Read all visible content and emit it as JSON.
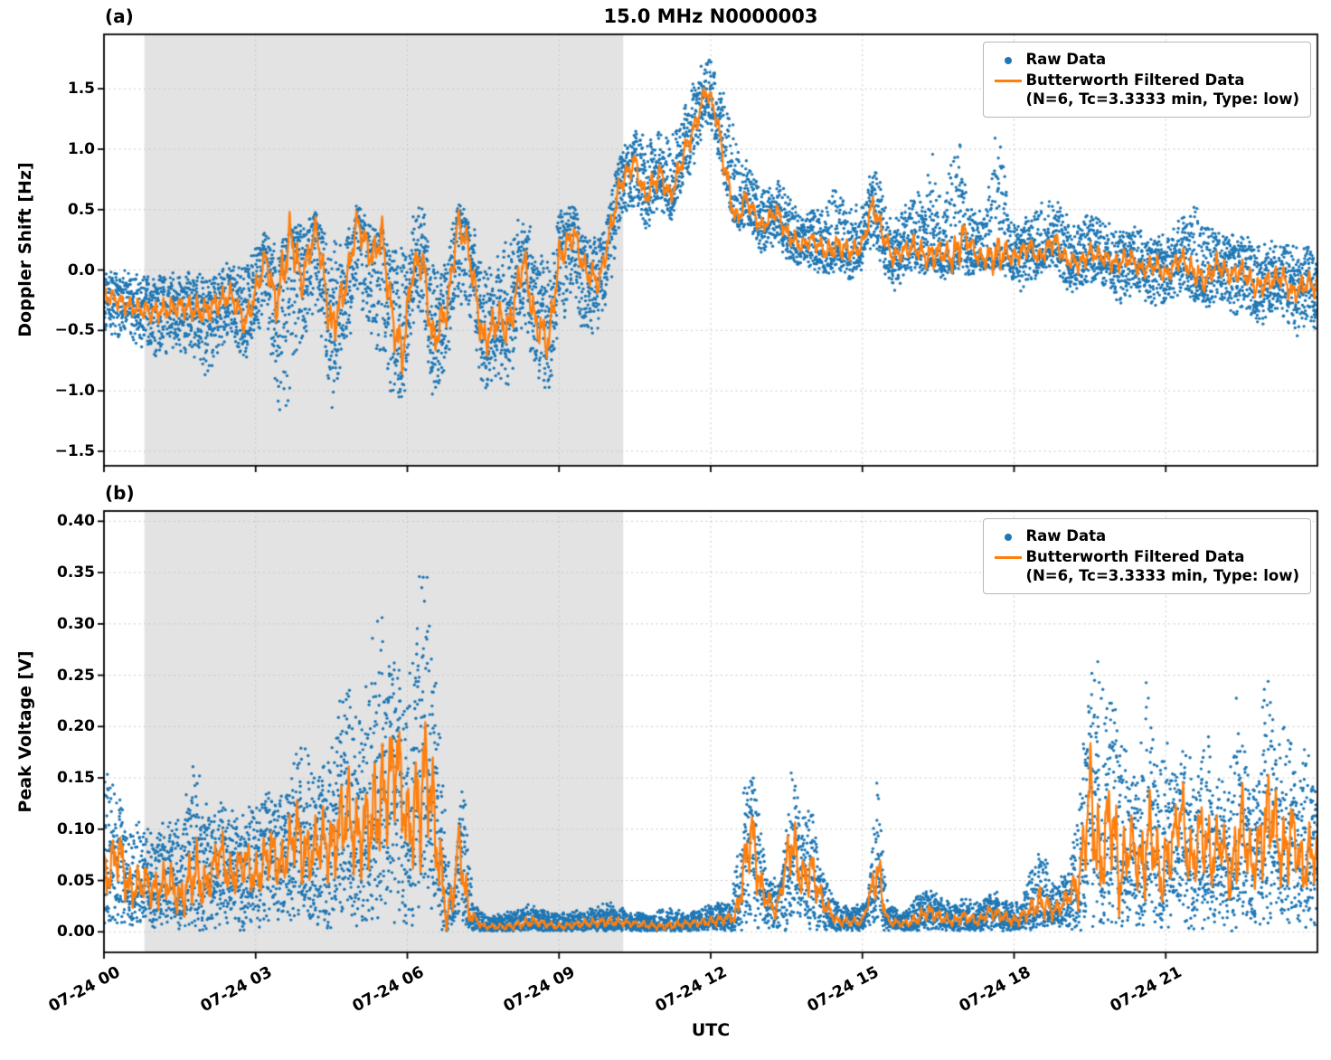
{
  "figure": {
    "title": "15.0 MHz N0000003",
    "xlabel": "UTC",
    "panel_a_label": "(a)",
    "panel_b_label": "(b)",
    "seed": 42,
    "colors": {
      "raw": "#1f77b4",
      "filtered": "#ff7f0e",
      "shade": "#e3e3e3",
      "grid": "#c8c8c8",
      "axis": "#000000"
    },
    "legend": {
      "raw": "Raw Data",
      "filtered": "Butterworth Filtered Data",
      "filtered_params": "(N=6, Tc=3.3333 min, Type: low)"
    },
    "shade_region_hours": [
      0.8,
      10.27
    ]
  },
  "chart_data": [
    {
      "type": "scatter",
      "panel": "a",
      "title": "15.0 MHz N0000003",
      "ylabel": "Doppler Shift [Hz]",
      "xlabel": "UTC",
      "ylim": [
        -1.62,
        1.95
      ],
      "yticks": [
        -1.5,
        -1.0,
        -0.5,
        0.0,
        0.5,
        1.0,
        1.5
      ],
      "ytick_labels": [
        "−1.5",
        "−1.0",
        "−0.5",
        "0.0",
        "0.5",
        "1.0",
        "1.5"
      ],
      "xlim_hours": [
        0,
        24
      ],
      "xticks_hours": [
        0,
        3,
        6,
        9,
        12,
        15,
        18,
        21
      ],
      "xtick_labels": [
        "07-24 00",
        "07-24 03",
        "07-24 06",
        "07-24 09",
        "07-24 12",
        "07-24 15",
        "07-24 18",
        "07-24 21"
      ],
      "series": [
        {
          "name": "Raw Data",
          "type": "scatter",
          "color": "#1f77b4"
        },
        {
          "name": "Butterworth Filtered Data (N=6, Tc=3.3333 min, Type: low)",
          "type": "line",
          "color": "#ff7f0e"
        }
      ],
      "filtered": {
        "x": [
          0,
          0.5,
          1,
          1.5,
          2,
          2.5,
          2.8,
          3.2,
          3.4,
          3.7,
          3.9,
          4.2,
          4.5,
          4.8,
          5,
          5.3,
          5.5,
          5.7,
          5.9,
          6.1,
          6.3,
          6.5,
          6.8,
          7,
          7.2,
          7.5,
          7.8,
          8,
          8.3,
          8.5,
          8.8,
          9,
          9.3,
          9.5,
          9.8,
          10,
          10.2,
          10.5,
          10.7,
          11,
          11.2,
          11.5,
          11.7,
          11.9,
          12.1,
          12.3,
          12.5,
          12.7,
          13,
          13.3,
          13.5,
          13.8,
          14,
          14.3,
          14.5,
          14.8,
          15,
          15.2,
          15.4,
          15.6,
          15.8,
          16,
          16.3,
          16.5,
          16.8,
          17,
          17.3,
          17.5,
          17.8,
          18,
          18.3,
          18.5,
          18.8,
          19,
          19.3,
          19.5,
          19.8,
          20,
          20.3,
          20.5,
          20.8,
          21,
          21.3,
          21.5,
          21.8,
          22,
          22.3,
          22.5,
          22.8,
          23,
          23.3,
          23.5,
          23.8,
          24
        ],
        "y": [
          -0.2,
          -0.3,
          -0.35,
          -0.3,
          -0.35,
          -0.2,
          -0.45,
          0.1,
          -0.3,
          0.3,
          -0.1,
          0.35,
          -0.5,
          -0.1,
          0.4,
          0.1,
          0.3,
          -0.4,
          -0.7,
          0,
          0.1,
          -0.6,
          -0.3,
          0.4,
          0.2,
          -0.6,
          -0.4,
          -0.5,
          0.1,
          -0.4,
          -0.6,
          0.1,
          0.3,
          0,
          -0.1,
          0.3,
          0.7,
          0.9,
          0.6,
          0.8,
          0.6,
          1,
          1.2,
          1.5,
          1.3,
          0.8,
          0.4,
          0.6,
          0.35,
          0.5,
          0.3,
          0.2,
          0.25,
          0.15,
          0.2,
          0.15,
          0.2,
          0.55,
          0.3,
          0.1,
          0.15,
          0.2,
          0.1,
          0.15,
          0.1,
          0.3,
          0.1,
          0.1,
          0.15,
          0.1,
          0.2,
          0.1,
          0.25,
          0.1,
          0.05,
          0.15,
          0.1,
          0.05,
          0.1,
          0,
          0.05,
          -0.05,
          0.1,
          0,
          -0.1,
          0.05,
          -0.05,
          0,
          -0.15,
          -0.1,
          -0.05,
          -0.2,
          -0.1,
          -0.15
        ]
      },
      "raw_envelope": {
        "x": [
          0,
          0.5,
          1,
          1.5,
          2,
          2.5,
          2.8,
          3.2,
          3.4,
          3.6,
          3.9,
          4.2,
          4.5,
          4.8,
          5,
          5.3,
          5.6,
          5.9,
          6.1,
          6.3,
          6.5,
          6.8,
          7,
          7.3,
          7.5,
          7.8,
          8,
          8.3,
          8.5,
          8.8,
          9,
          9.3,
          9.5,
          9.8,
          10,
          10.2,
          10.5,
          10.7,
          11,
          11.2,
          11.5,
          11.7,
          11.9,
          12.05,
          12.2,
          12.4,
          12.6,
          12.8,
          13,
          13.3,
          13.6,
          13.9,
          14.2,
          14.5,
          14.8,
          15,
          15.2,
          15.4,
          15.6,
          15.8,
          16,
          16.2,
          16.4,
          16.6,
          16.9,
          17.1,
          17.4,
          17.7,
          17.9,
          18.1,
          18.4,
          18.6,
          18.9,
          19.1,
          19.4,
          19.6,
          19.9,
          20.1,
          20.4,
          20.6,
          20.9,
          21.1,
          21.4,
          21.6,
          21.9,
          22.1,
          22.4,
          22.6,
          22.9,
          23.1,
          23.4,
          23.6,
          23.9,
          24
        ],
        "lo": [
          -0.55,
          -0.6,
          -0.75,
          -0.7,
          -0.9,
          -0.6,
          -0.8,
          -0.4,
          -1.1,
          -1.4,
          -0.7,
          -0.3,
          -1.2,
          -0.7,
          -0.3,
          -0.6,
          -1.0,
          -1.2,
          -0.5,
          -0.5,
          -1.15,
          -0.8,
          -0.3,
          -0.6,
          -1.1,
          -0.9,
          -1.0,
          -0.5,
          -0.9,
          -1.15,
          -0.5,
          -0.3,
          -0.6,
          -0.5,
          -0.2,
          0.3,
          0.5,
          0.3,
          0.5,
          0.35,
          0.7,
          0.9,
          1.2,
          1.1,
          0.8,
          0.4,
          0.3,
          0.3,
          0.1,
          0.2,
          0,
          0,
          -0.1,
          0,
          -0.1,
          0,
          0.2,
          0,
          -0.2,
          -0.1,
          0,
          -0.1,
          0,
          -0.1,
          0,
          -0.1,
          0,
          0,
          -0.1,
          -0.2,
          -0.1,
          0,
          -0.1,
          -0.2,
          -0.15,
          -0.1,
          -0.2,
          -0.3,
          -0.2,
          -0.3,
          -0.35,
          -0.3,
          -0.2,
          -0.3,
          -0.35,
          -0.3,
          -0.4,
          -0.35,
          -0.5,
          -0.4,
          -0.45,
          -0.55,
          -0.5,
          -0.5
        ],
        "hi": [
          0.05,
          0,
          -0.05,
          0,
          0,
          0.1,
          0.05,
          0.4,
          0.2,
          0.3,
          0.45,
          0.5,
          0.3,
          0.3,
          0.55,
          0.4,
          0.3,
          0.2,
          0.5,
          0.6,
          0.2,
          0.2,
          0.6,
          0.4,
          0.1,
          0.2,
          0.3,
          0.5,
          0.3,
          0.1,
          0.5,
          0.55,
          0.3,
          0.3,
          0.6,
          1.0,
          1.2,
          1.1,
          1.25,
          1.1,
          1.4,
          1.6,
          1.8,
          1.75,
          1.6,
          1.3,
          1.0,
          0.9,
          0.7,
          0.8,
          0.6,
          0.5,
          0.5,
          0.8,
          0.5,
          0.6,
          0.9,
          0.7,
          0.4,
          0.5,
          0.7,
          0.6,
          1.0,
          0.5,
          1.35,
          0.5,
          0.6,
          1.35,
          0.5,
          0.4,
          0.5,
          0.6,
          0.6,
          0.4,
          0.45,
          0.5,
          0.4,
          0.35,
          0.4,
          0.3,
          0.3,
          0.35,
          0.5,
          0.55,
          0.4,
          0.35,
          0.3,
          0.3,
          0.25,
          0.3,
          0.25,
          0.2,
          0.25,
          0.2
        ]
      }
    },
    {
      "type": "scatter",
      "panel": "b",
      "ylabel": "Peak Voltage [V]",
      "xlabel": "UTC",
      "ylim": [
        -0.02,
        0.41
      ],
      "yticks": [
        0.0,
        0.05,
        0.1,
        0.15,
        0.2,
        0.25,
        0.3,
        0.35,
        0.4
      ],
      "ytick_labels": [
        "0.00",
        "0.05",
        "0.10",
        "0.15",
        "0.20",
        "0.25",
        "0.30",
        "0.35",
        "0.40"
      ],
      "xlim_hours": [
        0,
        24
      ],
      "xticks_hours": [
        0,
        3,
        6,
        9,
        12,
        15,
        18,
        21
      ],
      "xtick_labels": [
        "07-24 00",
        "07-24 03",
        "07-24 06",
        "07-24 09",
        "07-24 12",
        "07-24 15",
        "07-24 18",
        "07-24 21"
      ],
      "series": [
        {
          "name": "Raw Data",
          "type": "scatter",
          "color": "#1f77b4"
        },
        {
          "name": "Butterworth Filtered Data (N=6, Tc=3.3333 min, Type: low)",
          "type": "line",
          "color": "#ff7f0e"
        }
      ],
      "filtered": {
        "x": [
          0,
          0.3,
          0.5,
          0.8,
          1,
          1.3,
          1.5,
          1.8,
          2,
          2.3,
          2.5,
          2.8,
          3,
          3.3,
          3.5,
          3.8,
          4,
          4.3,
          4.5,
          4.8,
          5,
          5.3,
          5.5,
          5.8,
          6,
          6.2,
          6.4,
          6.6,
          6.8,
          7,
          7.2,
          7.5,
          8,
          8.5,
          9,
          9.5,
          10,
          10.5,
          11,
          11.5,
          12,
          12.5,
          12.8,
          13,
          13.3,
          13.6,
          13.8,
          14,
          14.2,
          14.5,
          14.8,
          15,
          15.3,
          15.5,
          15.8,
          16,
          16.3,
          16.5,
          16.8,
          17,
          17.3,
          17.5,
          17.8,
          18,
          18.3,
          18.5,
          18.8,
          19,
          19.3,
          19.5,
          19.7,
          19.9,
          20.1,
          20.3,
          20.5,
          20.7,
          20.9,
          21.1,
          21.3,
          21.5,
          21.7,
          21.9,
          22.1,
          22.3,
          22.5,
          22.7,
          22.9,
          23.1,
          23.3,
          23.5,
          23.7,
          23.9,
          24
        ],
        "y": [
          0.05,
          0.08,
          0.04,
          0.05,
          0.04,
          0.05,
          0.03,
          0.06,
          0.04,
          0.08,
          0.05,
          0.07,
          0.05,
          0.08,
          0.06,
          0.1,
          0.07,
          0.09,
          0.08,
          0.12,
          0.09,
          0.11,
          0.13,
          0.17,
          0.1,
          0.12,
          0.16,
          0.08,
          0.01,
          0.1,
          0.02,
          0.005,
          0.005,
          0.01,
          0.005,
          0.008,
          0.01,
          0.008,
          0.005,
          0.008,
          0.01,
          0.015,
          0.1,
          0.04,
          0.02,
          0.09,
          0.05,
          0.06,
          0.03,
          0.01,
          0.01,
          0.01,
          0.06,
          0.01,
          0.008,
          0.01,
          0.02,
          0.015,
          0.01,
          0.015,
          0.01,
          0.02,
          0.015,
          0.01,
          0.02,
          0.03,
          0.02,
          0.03,
          0.05,
          0.14,
          0.06,
          0.12,
          0.05,
          0.09,
          0.06,
          0.1,
          0.05,
          0.08,
          0.12,
          0.06,
          0.1,
          0.07,
          0.09,
          0.05,
          0.11,
          0.06,
          0.09,
          0.12,
          0.07,
          0.1,
          0.06,
          0.08,
          0.07
        ]
      },
      "raw_envelope": {
        "x": [
          0,
          0.3,
          0.6,
          0.9,
          1.2,
          1.5,
          1.8,
          2.1,
          2.4,
          2.7,
          3,
          3.3,
          3.6,
          3.9,
          4.2,
          4.5,
          4.8,
          5.1,
          5.4,
          5.7,
          6,
          6.3,
          6.5,
          6.7,
          6.9,
          7.1,
          7.3,
          7.6,
          8,
          8.4,
          8.8,
          9.2,
          9.6,
          10,
          10.4,
          10.8,
          11.2,
          11.6,
          12,
          12.4,
          12.7,
          12.9,
          13.1,
          13.4,
          13.6,
          13.8,
          14,
          14.2,
          14.5,
          14.8,
          15.1,
          15.3,
          15.5,
          15.8,
          16.1,
          16.4,
          16.7,
          17,
          17.3,
          17.6,
          17.9,
          18.2,
          18.5,
          18.8,
          19.1,
          19.4,
          19.6,
          19.8,
          20,
          20.2,
          20.4,
          20.6,
          20.8,
          21,
          21.2,
          21.4,
          21.6,
          21.8,
          22,
          22.2,
          22.4,
          22.6,
          22.8,
          23,
          23.2,
          23.4,
          23.6,
          23.8,
          24
        ],
        "lo": 0,
        "hi": [
          0.16,
          0.14,
          0.12,
          0.1,
          0.12,
          0.11,
          0.18,
          0.12,
          0.13,
          0.12,
          0.13,
          0.15,
          0.14,
          0.21,
          0.16,
          0.2,
          0.26,
          0.22,
          0.33,
          0.28,
          0.24,
          0.385,
          0.3,
          0.17,
          0.02,
          0.16,
          0.03,
          0.015,
          0.02,
          0.03,
          0.02,
          0.02,
          0.025,
          0.03,
          0.02,
          0.02,
          0.025,
          0.02,
          0.03,
          0.03,
          0.16,
          0.16,
          0.06,
          0.05,
          0.18,
          0.12,
          0.13,
          0.06,
          0.03,
          0.025,
          0.03,
          0.155,
          0.03,
          0.02,
          0.04,
          0.045,
          0.03,
          0.035,
          0.03,
          0.04,
          0.035,
          0.04,
          0.09,
          0.05,
          0.06,
          0.2,
          0.32,
          0.22,
          0.28,
          0.18,
          0.15,
          0.26,
          0.17,
          0.19,
          0.15,
          0.21,
          0.18,
          0.22,
          0.16,
          0.14,
          0.25,
          0.17,
          0.15,
          0.31,
          0.18,
          0.22,
          0.15,
          0.19,
          0.14
        ]
      }
    }
  ]
}
